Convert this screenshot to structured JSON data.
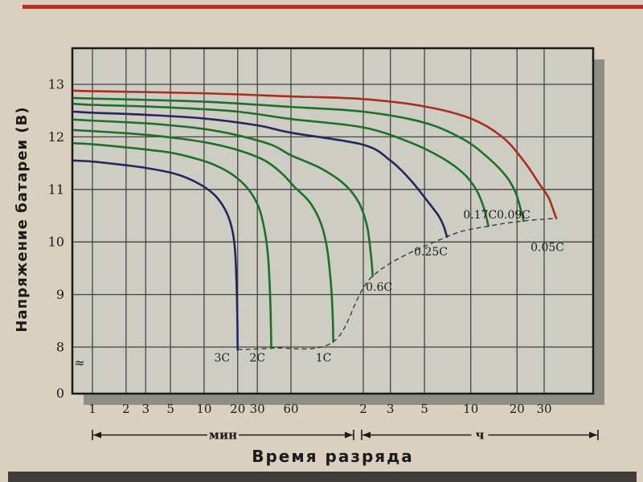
{
  "page": {
    "colors": {
      "background": "#d9d0bf",
      "plot_background": "#cdcdc4",
      "grid": "#45453f",
      "plot_border": "#1a1a1a",
      "shadow": "#8e8e86",
      "text": "#1b1b1b",
      "artifact_red": "#b0352b",
      "artifact_dark": "#403e3a"
    }
  },
  "chart_data": {
    "type": "line",
    "title": "",
    "xlabel": "Время разряда",
    "ylabel": "Напряжение батареи (В)",
    "x_axis": {
      "scale": "log",
      "sections": [
        {
          "unit_label": "мин",
          "unit_minutes": 1,
          "ticks": [
            1,
            2,
            3,
            5,
            10,
            20,
            30,
            60
          ]
        },
        {
          "unit_label": "ч",
          "unit_minutes": 60,
          "ticks": [
            2,
            3,
            5,
            10,
            20,
            30
          ]
        }
      ]
    },
    "y_axis": {
      "ticks": [
        13,
        12,
        11,
        10,
        9,
        8
      ],
      "zero_label": "0",
      "break_symbol": "≈",
      "unit": "В",
      "range": [
        8,
        13
      ]
    },
    "series": [
      {
        "name": "3C",
        "color": "#26265e",
        "points": [
          [
            0.68,
            11.55
          ],
          [
            1,
            11.53
          ],
          [
            2,
            11.46
          ],
          [
            3,
            11.41
          ],
          [
            5,
            11.32
          ],
          [
            7,
            11.22
          ],
          [
            10,
            11.05
          ],
          [
            13,
            10.85
          ],
          [
            16,
            10.55
          ],
          [
            18,
            10.2
          ],
          [
            19,
            9.8
          ],
          [
            19.6,
            9.1
          ],
          [
            19.9,
            8.4
          ],
          [
            20,
            7.95
          ]
        ]
      },
      {
        "name": "2C",
        "color": "#1d6f2b",
        "points": [
          [
            0.68,
            11.88
          ],
          [
            1,
            11.86
          ],
          [
            2,
            11.8
          ],
          [
            3,
            11.76
          ],
          [
            5,
            11.7
          ],
          [
            8,
            11.6
          ],
          [
            12,
            11.48
          ],
          [
            18,
            11.28
          ],
          [
            25,
            11.0
          ],
          [
            31,
            10.65
          ],
          [
            35,
            10.2
          ],
          [
            37.5,
            9.7
          ],
          [
            39,
            9.0
          ],
          [
            39.7,
            8.4
          ],
          [
            40,
            7.98
          ]
        ]
      },
      {
        "name": "1C",
        "color": "#1d6f2b",
        "points": [
          [
            0.68,
            12.13
          ],
          [
            1,
            12.11
          ],
          [
            2,
            12.07
          ],
          [
            3,
            12.04
          ],
          [
            5,
            11.99
          ],
          [
            10,
            11.9
          ],
          [
            20,
            11.75
          ],
          [
            35,
            11.55
          ],
          [
            50,
            11.3
          ],
          [
            62,
            11.05
          ],
          [
            72,
            10.75
          ],
          [
            80,
            10.35
          ],
          [
            85,
            9.85
          ],
          [
            88,
            9.2
          ],
          [
            89.5,
            8.6
          ],
          [
            90,
            8.1
          ]
        ]
      },
      {
        "name": "0.6C",
        "color": "#1d6f2b",
        "points": [
          [
            0.68,
            12.33
          ],
          [
            1,
            12.31
          ],
          [
            3,
            12.26
          ],
          [
            5,
            12.22
          ],
          [
            10,
            12.15
          ],
          [
            20,
            12.03
          ],
          [
            40,
            11.85
          ],
          [
            60,
            11.65
          ],
          [
            80,
            11.4
          ],
          [
            100,
            11.1
          ],
          [
            115,
            10.75
          ],
          [
            127,
            10.3
          ],
          [
            134,
            9.8
          ],
          [
            137,
            9.5
          ],
          [
            138,
            9.35
          ]
        ]
      },
      {
        "name": "0.25C",
        "color": "#26265e",
        "points": [
          [
            0.68,
            12.48
          ],
          [
            1,
            12.46
          ],
          [
            3,
            12.42
          ],
          [
            10,
            12.35
          ],
          [
            30,
            12.22
          ],
          [
            60,
            12.08
          ],
          [
            120,
            11.85
          ],
          [
            180,
            11.55
          ],
          [
            240,
            11.2
          ],
          [
            300,
            10.85
          ],
          [
            370,
            10.5
          ],
          [
            400,
            10.3
          ],
          [
            415,
            10.15
          ],
          [
            420,
            10.1
          ]
        ]
      },
      {
        "name": "0.17C",
        "color": "#1d6f2b",
        "points": [
          [
            0.68,
            12.63
          ],
          [
            1,
            12.61
          ],
          [
            5,
            12.56
          ],
          [
            20,
            12.48
          ],
          [
            60,
            12.34
          ],
          [
            120,
            12.18
          ],
          [
            240,
            11.9
          ],
          [
            390,
            11.6
          ],
          [
            540,
            11.3
          ],
          [
            650,
            11.0
          ],
          [
            720,
            10.7
          ],
          [
            760,
            10.45
          ],
          [
            778,
            10.32
          ],
          [
            780,
            10.3
          ]
        ]
      },
      {
        "name": "0.09C",
        "color": "#1d6f2b",
        "points": [
          [
            0.68,
            12.74
          ],
          [
            1,
            12.73
          ],
          [
            10,
            12.67
          ],
          [
            60,
            12.57
          ],
          [
            120,
            12.48
          ],
          [
            300,
            12.27
          ],
          [
            540,
            11.95
          ],
          [
            780,
            11.6
          ],
          [
            1020,
            11.25
          ],
          [
            1170,
            10.95
          ],
          [
            1260,
            10.65
          ],
          [
            1305,
            10.48
          ],
          [
            1320,
            10.4
          ]
        ]
      },
      {
        "name": "0.05C",
        "color": "#aa2e1e",
        "points": [
          [
            0.68,
            12.88
          ],
          [
            1,
            12.87
          ],
          [
            10,
            12.83
          ],
          [
            60,
            12.77
          ],
          [
            120,
            12.72
          ],
          [
            300,
            12.58
          ],
          [
            600,
            12.35
          ],
          [
            960,
            12.0
          ],
          [
            1320,
            11.55
          ],
          [
            1680,
            11.1
          ],
          [
            1920,
            10.85
          ],
          [
            2070,
            10.6
          ],
          [
            2140,
            10.48
          ],
          [
            2160,
            10.45
          ]
        ]
      }
    ],
    "capacity_line": {
      "style": "dashed",
      "color": "#3c3c38",
      "points": [
        [
          20,
          7.95
        ],
        [
          40,
          7.98
        ],
        [
          90,
          8.1
        ],
        [
          138,
          9.35
        ],
        [
          420,
          10.1
        ],
        [
          780,
          10.3
        ],
        [
          1320,
          10.4
        ],
        [
          2160,
          10.45
        ]
      ]
    },
    "curve_labels": [
      {
        "text": "3C",
        "t": 14.5,
        "v": 7.8
      },
      {
        "text": "2C",
        "t": 30,
        "v": 7.8
      },
      {
        "text": "1C",
        "t": 82,
        "v": 7.8
      },
      {
        "text": "0.6C",
        "t": 152,
        "v": 9.15
      },
      {
        "text": "0.25C",
        "t": 330,
        "v": 9.82
      },
      {
        "text": "0.17C",
        "t": 690,
        "v": 10.52
      },
      {
        "text": "0.09C",
        "t": 1140,
        "v": 10.52
      },
      {
        "text": "0.05C",
        "t": 1890,
        "v": 9.9
      }
    ]
  }
}
